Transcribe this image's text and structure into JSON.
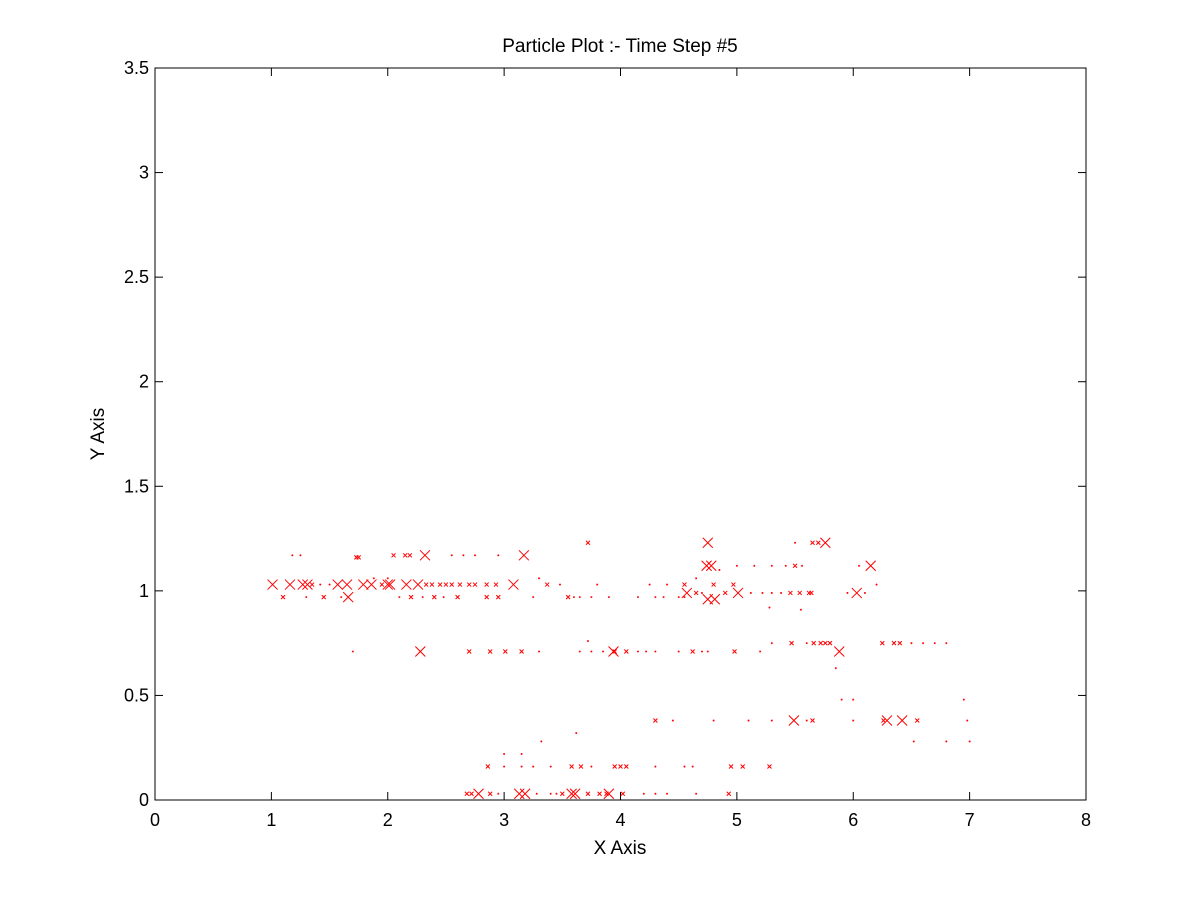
{
  "chart_data": {
    "type": "scatter",
    "title": "Particle Plot :- Time Step #5",
    "xlabel": "X Axis",
    "ylabel": "Y Axis",
    "xlim": [
      0,
      8
    ],
    "ylim": [
      0,
      3.5
    ],
    "xticks": [
      "0",
      "1",
      "2",
      "3",
      "4",
      "5",
      "6",
      "7",
      "8"
    ],
    "yticks": [
      "0",
      "0.5",
      "1",
      "1.5",
      "2",
      "2.5",
      "3",
      "3.5"
    ],
    "grid": false,
    "marker": "x",
    "color": "#ff0000",
    "series": [
      {
        "size": "large",
        "points": [
          [
            1.01,
            1.03
          ],
          [
            1.16,
            1.03
          ],
          [
            1.27,
            1.03
          ],
          [
            1.31,
            1.03
          ],
          [
            1.57,
            1.03
          ],
          [
            1.65,
            1.03
          ],
          [
            1.79,
            1.03
          ],
          [
            1.86,
            1.03
          ],
          [
            2.0,
            1.03
          ],
          [
            2.02,
            1.03
          ],
          [
            2.16,
            1.03
          ],
          [
            2.26,
            1.03
          ],
          [
            1.66,
            0.97
          ],
          [
            2.28,
            0.71
          ],
          [
            2.32,
            1.17
          ],
          [
            3.17,
            1.17
          ],
          [
            3.08,
            1.03
          ],
          [
            2.78,
            0.03
          ],
          [
            3.13,
            0.03
          ],
          [
            3.18,
            0.03
          ],
          [
            3.58,
            0.03
          ],
          [
            3.61,
            0.03
          ],
          [
            3.9,
            0.03
          ],
          [
            3.94,
            0.71
          ],
          [
            4.57,
            0.99
          ],
          [
            4.75,
            0.96
          ],
          [
            4.81,
            0.96
          ],
          [
            5.01,
            0.99
          ],
          [
            4.75,
            1.23
          ],
          [
            4.74,
            1.12
          ],
          [
            4.78,
            1.12
          ],
          [
            5.76,
            1.23
          ],
          [
            6.15,
            1.12
          ],
          [
            6.03,
            0.99
          ],
          [
            5.88,
            0.71
          ],
          [
            5.49,
            0.38
          ],
          [
            6.29,
            0.38
          ],
          [
            6.42,
            0.38
          ]
        ]
      },
      {
        "size": "small",
        "points": [
          [
            1.1,
            0.97
          ],
          [
            1.45,
            0.97
          ],
          [
            1.73,
            1.16
          ],
          [
            1.75,
            1.16
          ],
          [
            2.05,
            1.17
          ],
          [
            2.15,
            1.17
          ],
          [
            2.19,
            1.17
          ],
          [
            2.33,
            1.03
          ],
          [
            2.38,
            1.03
          ],
          [
            2.45,
            1.03
          ],
          [
            2.55,
            1.03
          ],
          [
            2.62,
            1.03
          ],
          [
            2.7,
            1.03
          ],
          [
            2.75,
            1.03
          ],
          [
            2.85,
            1.03
          ],
          [
            2.93,
            1.03
          ],
          [
            2.2,
            0.97
          ],
          [
            2.4,
            0.97
          ],
          [
            2.6,
            0.97
          ],
          [
            2.85,
            0.97
          ],
          [
            2.95,
            0.97
          ],
          [
            3.37,
            1.03
          ],
          [
            3.55,
            0.97
          ],
          [
            3.72,
            1.23
          ],
          [
            2.7,
            0.71
          ],
          [
            2.88,
            0.71
          ],
          [
            3.01,
            0.71
          ],
          [
            3.15,
            0.71
          ],
          [
            3.95,
            0.71
          ],
          [
            4.05,
            0.71
          ],
          [
            4.62,
            0.71
          ],
          [
            4.98,
            0.71
          ],
          [
            2.68,
            0.03
          ],
          [
            2.72,
            0.03
          ],
          [
            2.88,
            0.03
          ],
          [
            3.5,
            0.03
          ],
          [
            3.72,
            0.03
          ],
          [
            3.82,
            0.03
          ],
          [
            3.88,
            0.03
          ],
          [
            2.86,
            0.16
          ],
          [
            3.58,
            0.16
          ],
          [
            3.66,
            0.16
          ],
          [
            3.95,
            0.16
          ],
          [
            4.0,
            0.16
          ],
          [
            4.05,
            0.16
          ],
          [
            4.95,
            0.16
          ],
          [
            5.05,
            0.16
          ],
          [
            5.28,
            0.16
          ],
          [
            4.93,
            0.03
          ],
          [
            4.55,
            1.03
          ],
          [
            4.8,
            1.03
          ],
          [
            4.97,
            1.03
          ],
          [
            4.65,
            0.99
          ],
          [
            4.9,
            0.99
          ],
          [
            5.46,
            0.99
          ],
          [
            5.54,
            0.99
          ],
          [
            5.62,
            0.99
          ],
          [
            5.64,
            0.99
          ],
          [
            5.65,
            1.23
          ],
          [
            5.7,
            1.23
          ],
          [
            5.5,
            1.12
          ],
          [
            5.47,
            0.75
          ],
          [
            5.66,
            0.75
          ],
          [
            5.72,
            0.75
          ],
          [
            5.76,
            0.75
          ],
          [
            5.8,
            0.75
          ],
          [
            6.25,
            0.75
          ],
          [
            6.35,
            0.75
          ],
          [
            6.4,
            0.75
          ],
          [
            5.65,
            0.38
          ],
          [
            6.26,
            0.38
          ],
          [
            6.55,
            0.38
          ],
          [
            4.3,
            0.38
          ],
          [
            4.02,
            0.03
          ],
          [
            1.95,
            1.03
          ],
          [
            1.35,
            1.03
          ],
          [
            2.5,
            1.03
          ]
        ]
      },
      {
        "size": "dot",
        "points": [
          [
            1.25,
            1.17
          ],
          [
            1.42,
            1.03
          ],
          [
            1.5,
            1.03
          ],
          [
            1.7,
            0.71
          ],
          [
            1.88,
            1.06
          ],
          [
            2.1,
            0.97
          ],
          [
            2.3,
            0.97
          ],
          [
            2.48,
            0.97
          ],
          [
            2.55,
            1.17
          ],
          [
            2.65,
            1.17
          ],
          [
            2.75,
            1.17
          ],
          [
            2.95,
            1.17
          ],
          [
            3.3,
            1.06
          ],
          [
            3.48,
            1.03
          ],
          [
            3.6,
            0.97
          ],
          [
            3.65,
            0.97
          ],
          [
            3.75,
            0.97
          ],
          [
            3.8,
            1.03
          ],
          [
            3.9,
            0.97
          ],
          [
            4.15,
            0.97
          ],
          [
            4.3,
            0.97
          ],
          [
            4.37,
            0.97
          ],
          [
            4.5,
            0.97
          ],
          [
            4.55,
            0.97
          ],
          [
            3.25,
            0.97
          ],
          [
            3.3,
            0.71
          ],
          [
            3.72,
            0.76
          ],
          [
            3.65,
            0.71
          ],
          [
            3.75,
            0.71
          ],
          [
            3.85,
            0.71
          ],
          [
            4.15,
            0.71
          ],
          [
            4.22,
            0.71
          ],
          [
            4.3,
            0.71
          ],
          [
            4.5,
            0.71
          ],
          [
            4.7,
            0.71
          ],
          [
            4.75,
            0.71
          ],
          [
            5.2,
            0.71
          ],
          [
            5.3,
            0.75
          ],
          [
            5.6,
            0.75
          ],
          [
            5.85,
            0.63
          ],
          [
            5.9,
            0.48
          ],
          [
            6.0,
            0.48
          ],
          [
            6.5,
            0.75
          ],
          [
            6.6,
            0.75
          ],
          [
            6.7,
            0.75
          ],
          [
            6.8,
            0.75
          ],
          [
            6.95,
            0.48
          ],
          [
            6.98,
            0.38
          ],
          [
            7.0,
            0.28
          ],
          [
            6.8,
            0.28
          ],
          [
            6.52,
            0.28
          ],
          [
            6.0,
            0.38
          ],
          [
            5.6,
            0.38
          ],
          [
            5.3,
            0.38
          ],
          [
            5.1,
            0.38
          ],
          [
            4.8,
            0.38
          ],
          [
            4.45,
            0.38
          ],
          [
            3.0,
            0.22
          ],
          [
            3.15,
            0.22
          ],
          [
            3.32,
            0.28
          ],
          [
            3.62,
            0.32
          ],
          [
            3.0,
            0.16
          ],
          [
            3.15,
            0.16
          ],
          [
            3.25,
            0.16
          ],
          [
            3.4,
            0.16
          ],
          [
            3.75,
            0.16
          ],
          [
            4.3,
            0.16
          ],
          [
            4.55,
            0.16
          ],
          [
            4.62,
            0.16
          ],
          [
            4.65,
            0.03
          ],
          [
            4.2,
            0.03
          ],
          [
            4.3,
            0.03
          ],
          [
            4.4,
            0.03
          ],
          [
            3.28,
            0.03
          ],
          [
            3.4,
            0.03
          ],
          [
            3.45,
            0.03
          ],
          [
            2.95,
            0.03
          ],
          [
            5.28,
            0.92
          ],
          [
            5.3,
            0.99
          ],
          [
            5.38,
            0.99
          ],
          [
            5.22,
            0.99
          ],
          [
            5.12,
            0.99
          ],
          [
            5.0,
            1.12
          ],
          [
            5.15,
            1.12
          ],
          [
            5.3,
            1.12
          ],
          [
            5.42,
            1.12
          ],
          [
            5.5,
            1.23
          ],
          [
            5.56,
            1.12
          ],
          [
            5.95,
            0.99
          ],
          [
            6.1,
            0.99
          ],
          [
            5.55,
            0.91
          ],
          [
            4.25,
            1.03
          ],
          [
            4.4,
            1.03
          ],
          [
            4.65,
            1.06
          ],
          [
            4.85,
            1.1
          ],
          [
            4.7,
            0.99
          ],
          [
            6.05,
            1.12
          ],
          [
            6.2,
            1.03
          ],
          [
            2.0,
            1.06
          ],
          [
            1.6,
            0.97
          ],
          [
            1.3,
            0.97
          ],
          [
            1.18,
            1.17
          ]
        ]
      }
    ]
  }
}
